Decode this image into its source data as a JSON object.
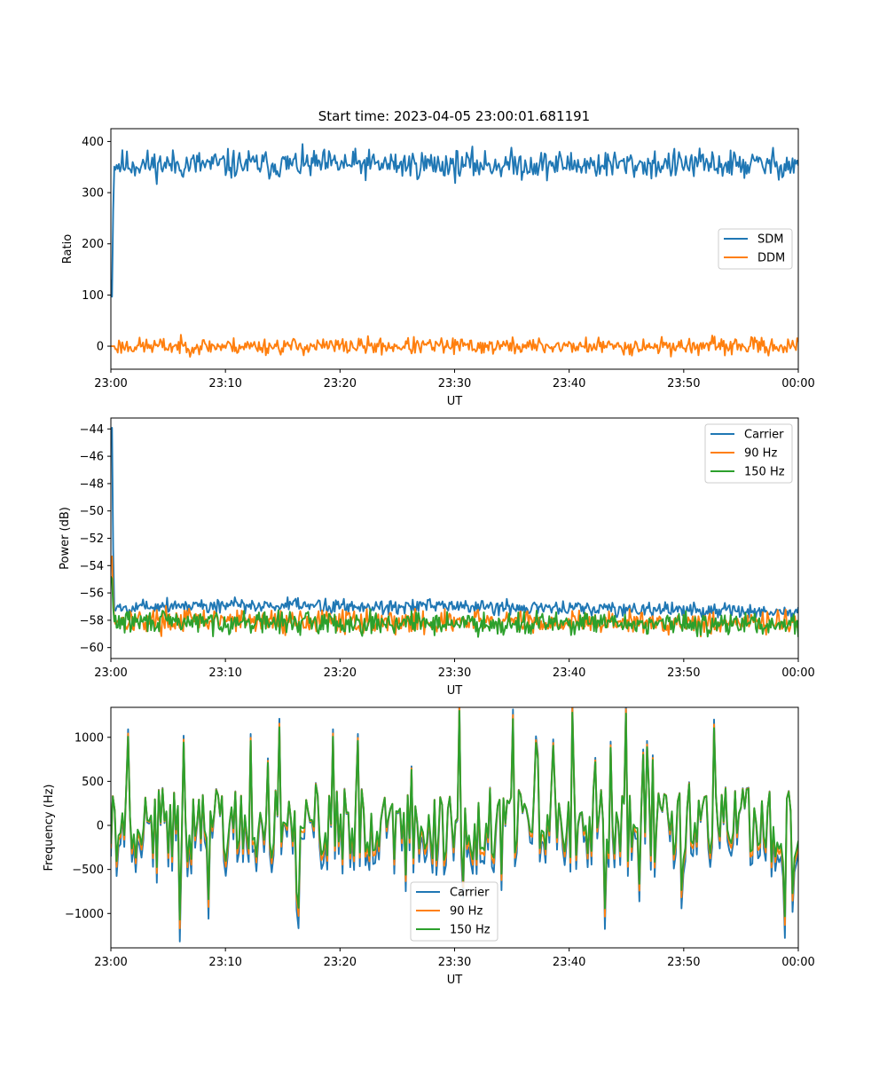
{
  "figure": {
    "title": "Start time: 2023-04-05 23:00:01.681191"
  },
  "chart_data": [
    {
      "type": "line",
      "xlabel": "UT",
      "ylabel": "Ratio",
      "x_ticks": [
        "23:00",
        "23:10",
        "23:20",
        "23:30",
        "23:40",
        "23:50",
        "00:00"
      ],
      "xlim": [
        "23:00",
        "00:00"
      ],
      "ylim": [
        -45,
        425
      ],
      "y_ticks": [
        0,
        100,
        200,
        300,
        400
      ],
      "grid": false,
      "legend_position": "center-right",
      "series": [
        {
          "name": "SDM",
          "color": "#1f77b4",
          "kind": "noise",
          "points": 600,
          "baseline": [
            [
              0,
              130
            ],
            [
              0.002,
              90
            ],
            [
              0.004,
              350
            ],
            [
              0.01,
              355
            ],
            [
              1,
              355
            ]
          ],
          "noise_amplitude": 14,
          "seed": 11,
          "range": [
            318,
            405
          ]
        },
        {
          "name": "DDM",
          "color": "#ff7f0e",
          "kind": "noise",
          "points": 600,
          "baseline": [
            [
              0,
              0
            ],
            [
              1,
              0
            ]
          ],
          "noise_amplitude": 8,
          "seed": 23,
          "range": [
            -25,
            22
          ]
        }
      ]
    },
    {
      "type": "line",
      "xlabel": "UT",
      "ylabel": "Power (dB)",
      "x_ticks": [
        "23:00",
        "23:10",
        "23:20",
        "23:30",
        "23:40",
        "23:50",
        "00:00"
      ],
      "xlim": [
        "23:00",
        "00:00"
      ],
      "ylim": [
        -60.8,
        -43.2
      ],
      "y_ticks": [
        -44,
        -46,
        -48,
        -50,
        -52,
        -54,
        -56,
        -58,
        -60
      ],
      "grid": false,
      "legend_position": "top-right",
      "series": [
        {
          "name": "Carrier",
          "color": "#1f77b4",
          "kind": "noise",
          "points": 600,
          "baseline": [
            [
              0,
              -44
            ],
            [
              0.002,
              -43.9
            ],
            [
              0.004,
              -57.2
            ],
            [
              0.05,
              -56.9
            ],
            [
              0.5,
              -57.0
            ],
            [
              1,
              -57.4
            ]
          ],
          "noise_amplitude": 0.28,
          "seed": 5,
          "range": [
            -58.0,
            -56.0
          ]
        },
        {
          "name": "90 Hz",
          "color": "#ff7f0e",
          "kind": "noise",
          "points": 600,
          "baseline": [
            [
              0,
              -53.5
            ],
            [
              0.002,
              -53.3
            ],
            [
              0.004,
              -58.0
            ],
            [
              1,
              -58.2
            ]
          ],
          "noise_amplitude": 0.42,
          "seed": 17,
          "range": [
            -59.9,
            -57.0
          ]
        },
        {
          "name": "150 Hz",
          "color": "#2ca02c",
          "kind": "noise",
          "points": 600,
          "baseline": [
            [
              0,
              -54.8
            ],
            [
              0.002,
              -55.0
            ],
            [
              0.004,
              -58.1
            ],
            [
              1,
              -58.3
            ]
          ],
          "noise_amplitude": 0.4,
          "seed": 29,
          "range": [
            -59.8,
            -57.3
          ]
        }
      ]
    },
    {
      "type": "line",
      "xlabel": "UT",
      "ylabel": "Frequency (Hz)",
      "x_ticks": [
        "23:00",
        "23:10",
        "23:20",
        "23:30",
        "23:40",
        "23:50",
        "00:00"
      ],
      "xlim": [
        "23:00",
        "00:00"
      ],
      "ylim": [
        -1390,
        1340
      ],
      "y_ticks": [
        1000,
        500,
        0,
        -500,
        -1000
      ],
      "grid": false,
      "legend_position": "lower-center",
      "series": [
        {
          "name": "Carrier",
          "color": "#1f77b4",
          "kind": "spiky",
          "points": 360,
          "scale": 1.12,
          "offset": -120,
          "seed": 41,
          "range": [
            -1250,
            1270
          ]
        },
        {
          "name": "90 Hz",
          "color": "#ff7f0e",
          "kind": "spiky",
          "points": 360,
          "scale": 1.05,
          "offset": -45,
          "seed": 41,
          "range": [
            -1200,
            1290
          ]
        },
        {
          "name": "150 Hz",
          "color": "#2ca02c",
          "kind": "spiky",
          "points": 360,
          "scale": 1.0,
          "offset": 0,
          "seed": 41,
          "range": [
            -1150,
            1310
          ]
        }
      ]
    }
  ]
}
